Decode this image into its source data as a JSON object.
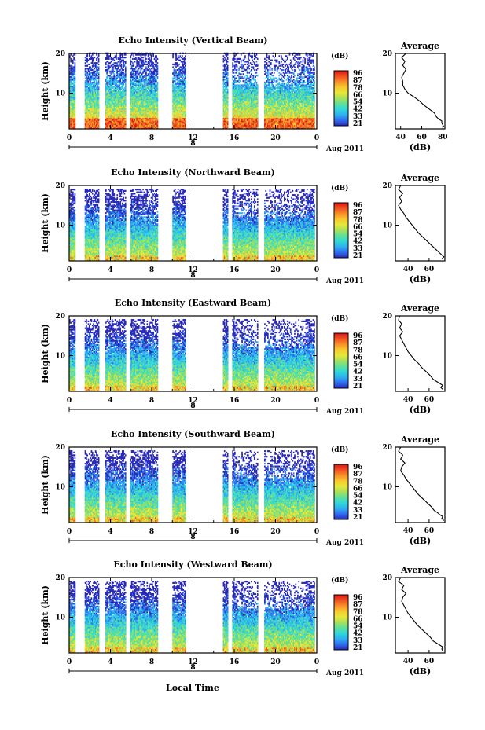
{
  "figure": {
    "xlabel": "Local Time",
    "date_label": "Aug 2011",
    "day_label": "8",
    "colorbar_unit": "(dB)",
    "colorbar_ticks": [
      "96",
      "87",
      "78",
      "66",
      "54",
      "42",
      "33",
      "21"
    ],
    "colorbar_colors": [
      "#2a2ab8",
      "#2f6ef0",
      "#2fb0f0",
      "#31d8d8",
      "#5fe09a",
      "#a8e05a",
      "#e6e838",
      "#f8c830",
      "#f89028",
      "#f05020",
      "#d81818"
    ],
    "average_title": "Average",
    "average_unit": "(dB)"
  },
  "chart_data": [
    {
      "type": "heatmap",
      "title": "Echo Intensity (Vertical Beam)",
      "ylabel": "Height (km)",
      "xlabel": "",
      "x_ticks": [
        "0",
        "4",
        "8",
        "12",
        "16",
        "20",
        "0"
      ],
      "y_ticks": [
        "20",
        "10"
      ],
      "xlim": [
        0,
        24
      ],
      "ylim": [
        1,
        20
      ],
      "colorbar_range_db": [
        21,
        96
      ],
      "data_gaps_hours": [
        [
          0.6,
          1.5
        ],
        [
          2.9,
          3.5
        ],
        [
          5.5,
          5.9
        ],
        [
          8.6,
          10.0
        ],
        [
          11.3,
          14.9
        ],
        [
          15.4,
          15.8
        ],
        [
          18.3,
          18.9
        ],
        [
          23.8,
          24
        ]
      ],
      "average": {
        "title": "Average",
        "xlabel": "(dB)",
        "x_ticks": [
          "40",
          "60",
          "80"
        ],
        "y_ticks": [
          "20",
          "10"
        ],
        "xlim": [
          35,
          82
        ],
        "ylim": [
          1,
          20
        ],
        "height_km": [
          1.5,
          2,
          2.5,
          3,
          3.5,
          4,
          5,
          6,
          7,
          8,
          9,
          10,
          11,
          12,
          13,
          14,
          15,
          16,
          17,
          18,
          19,
          20
        ],
        "values_db": [
          81,
          80,
          79,
          79,
          76,
          74,
          72,
          67,
          62,
          58,
          53,
          47,
          44,
          42,
          42,
          41,
          43,
          45,
          42,
          44,
          41,
          45
        ]
      }
    },
    {
      "type": "heatmap",
      "title": "Echo Intensity (Northward Beam)",
      "ylabel": "Height (km)",
      "xlabel": "",
      "x_ticks": [
        "0",
        "4",
        "8",
        "12",
        "16",
        "20",
        "0"
      ],
      "y_ticks": [
        "20",
        "10"
      ],
      "xlim": [
        0,
        24
      ],
      "ylim": [
        1,
        20
      ],
      "colorbar_range_db": [
        21,
        96
      ],
      "data_gaps_hours": [
        [
          0.6,
          1.5
        ],
        [
          2.9,
          3.5
        ],
        [
          5.5,
          5.9
        ],
        [
          8.6,
          10.0
        ],
        [
          11.3,
          14.9
        ],
        [
          15.4,
          15.8
        ],
        [
          18.3,
          18.9
        ],
        [
          23.8,
          24
        ]
      ],
      "average": {
        "title": "Average",
        "xlabel": "(dB)",
        "x_ticks": [
          "40",
          "60"
        ],
        "y_ticks": [
          "20",
          "10"
        ],
        "xlim": [
          28,
          75
        ],
        "ylim": [
          1,
          20
        ],
        "height_km": [
          1.5,
          2,
          2.5,
          3,
          3.5,
          4,
          5,
          6,
          7,
          8,
          9,
          10,
          11,
          12,
          13,
          14,
          15,
          16,
          17,
          18,
          19,
          20
        ],
        "values_db": [
          72,
          74,
          72,
          70,
          68,
          66,
          62,
          58,
          54,
          50,
          47,
          44,
          41,
          38,
          36,
          33,
          31,
          34,
          32,
          35,
          31,
          33
        ]
      }
    },
    {
      "type": "heatmap",
      "title": "Echo Intensity (Eastward Beam)",
      "ylabel": "Height (km)",
      "xlabel": "",
      "x_ticks": [
        "0",
        "4",
        "8",
        "12",
        "16",
        "20",
        "0"
      ],
      "y_ticks": [
        "20",
        "10"
      ],
      "xlim": [
        0,
        24
      ],
      "ylim": [
        1,
        20
      ],
      "colorbar_range_db": [
        21,
        96
      ],
      "data_gaps_hours": [
        [
          0.6,
          1.5
        ],
        [
          2.9,
          3.5
        ],
        [
          5.5,
          5.9
        ],
        [
          8.6,
          10.0
        ],
        [
          11.3,
          14.9
        ],
        [
          15.4,
          15.8
        ],
        [
          18.3,
          18.9
        ],
        [
          23.8,
          24
        ]
      ],
      "average": {
        "title": "Average",
        "xlabel": "(dB)",
        "x_ticks": [
          "40",
          "60"
        ],
        "y_ticks": [
          "20",
          "10"
        ],
        "xlim": [
          28,
          75
        ],
        "ylim": [
          1,
          20
        ],
        "height_km": [
          1.5,
          2,
          2.5,
          3,
          3.5,
          4,
          5,
          6,
          7,
          8,
          9,
          10,
          11,
          12,
          13,
          14,
          15,
          16,
          17,
          18,
          19,
          20
        ],
        "values_db": [
          73,
          71,
          73,
          70,
          67,
          64,
          61,
          57,
          53,
          50,
          46,
          43,
          40,
          38,
          36,
          34,
          32,
          35,
          32,
          34,
          31,
          32
        ]
      }
    },
    {
      "type": "heatmap",
      "title": "Echo Intensity (Southward Beam)",
      "ylabel": "Height (km)",
      "xlabel": "",
      "x_ticks": [
        "0",
        "4",
        "8",
        "12",
        "16",
        "20",
        "0"
      ],
      "y_ticks": [
        "20",
        "10"
      ],
      "xlim": [
        0,
        24
      ],
      "ylim": [
        1,
        20
      ],
      "colorbar_range_db": [
        21,
        96
      ],
      "data_gaps_hours": [
        [
          0.6,
          1.5
        ],
        [
          2.9,
          3.5
        ],
        [
          5.5,
          5.9
        ],
        [
          8.6,
          10.0
        ],
        [
          11.3,
          14.9
        ],
        [
          15.4,
          15.8
        ],
        [
          18.3,
          18.9
        ],
        [
          23.8,
          24
        ]
      ],
      "average": {
        "title": "Average",
        "xlabel": "(dB)",
        "x_ticks": [
          "40",
          "60"
        ],
        "y_ticks": [
          "20",
          "10"
        ],
        "xlim": [
          28,
          75
        ],
        "ylim": [
          1,
          20
        ],
        "height_km": [
          1.5,
          2,
          2.5,
          3,
          3.5,
          4,
          5,
          6,
          7,
          8,
          9,
          10,
          11,
          12,
          13,
          14,
          15,
          16,
          17,
          18,
          19,
          20
        ],
        "values_db": [
          74,
          72,
          73,
          70,
          68,
          65,
          62,
          58,
          54,
          50,
          47,
          44,
          41,
          38,
          36,
          33,
          34,
          37,
          33,
          35,
          31,
          33
        ]
      }
    },
    {
      "type": "heatmap",
      "title": "Echo Intensity (Westward Beam)",
      "ylabel": "Height (km)",
      "xlabel": "Local Time",
      "x_ticks": [
        "0",
        "4",
        "8",
        "12",
        "16",
        "20",
        "0"
      ],
      "y_ticks": [
        "20",
        "10"
      ],
      "xlim": [
        0,
        24
      ],
      "ylim": [
        1,
        20
      ],
      "colorbar_range_db": [
        21,
        96
      ],
      "data_gaps_hours": [
        [
          0.6,
          1.5
        ],
        [
          2.9,
          3.5
        ],
        [
          5.5,
          5.9
        ],
        [
          8.6,
          10.0
        ],
        [
          11.3,
          14.9
        ],
        [
          15.4,
          15.8
        ],
        [
          18.3,
          18.9
        ],
        [
          23.8,
          24
        ]
      ],
      "average": {
        "title": "Average",
        "xlabel": "(dB)",
        "x_ticks": [
          "40",
          "60"
        ],
        "y_ticks": [
          "20",
          "10"
        ],
        "xlim": [
          28,
          75
        ],
        "ylim": [
          1,
          20
        ],
        "height_km": [
          1.5,
          2,
          2.5,
          3,
          3.5,
          4,
          5,
          6,
          7,
          8,
          9,
          10,
          11,
          12,
          13,
          14,
          15,
          16,
          17,
          18,
          19,
          20
        ],
        "values_db": [
          73,
          72,
          73,
          70,
          67,
          64,
          61,
          57,
          53,
          49,
          46,
          43,
          40,
          38,
          36,
          34,
          35,
          38,
          34,
          36,
          31,
          33
        ]
      }
    }
  ]
}
